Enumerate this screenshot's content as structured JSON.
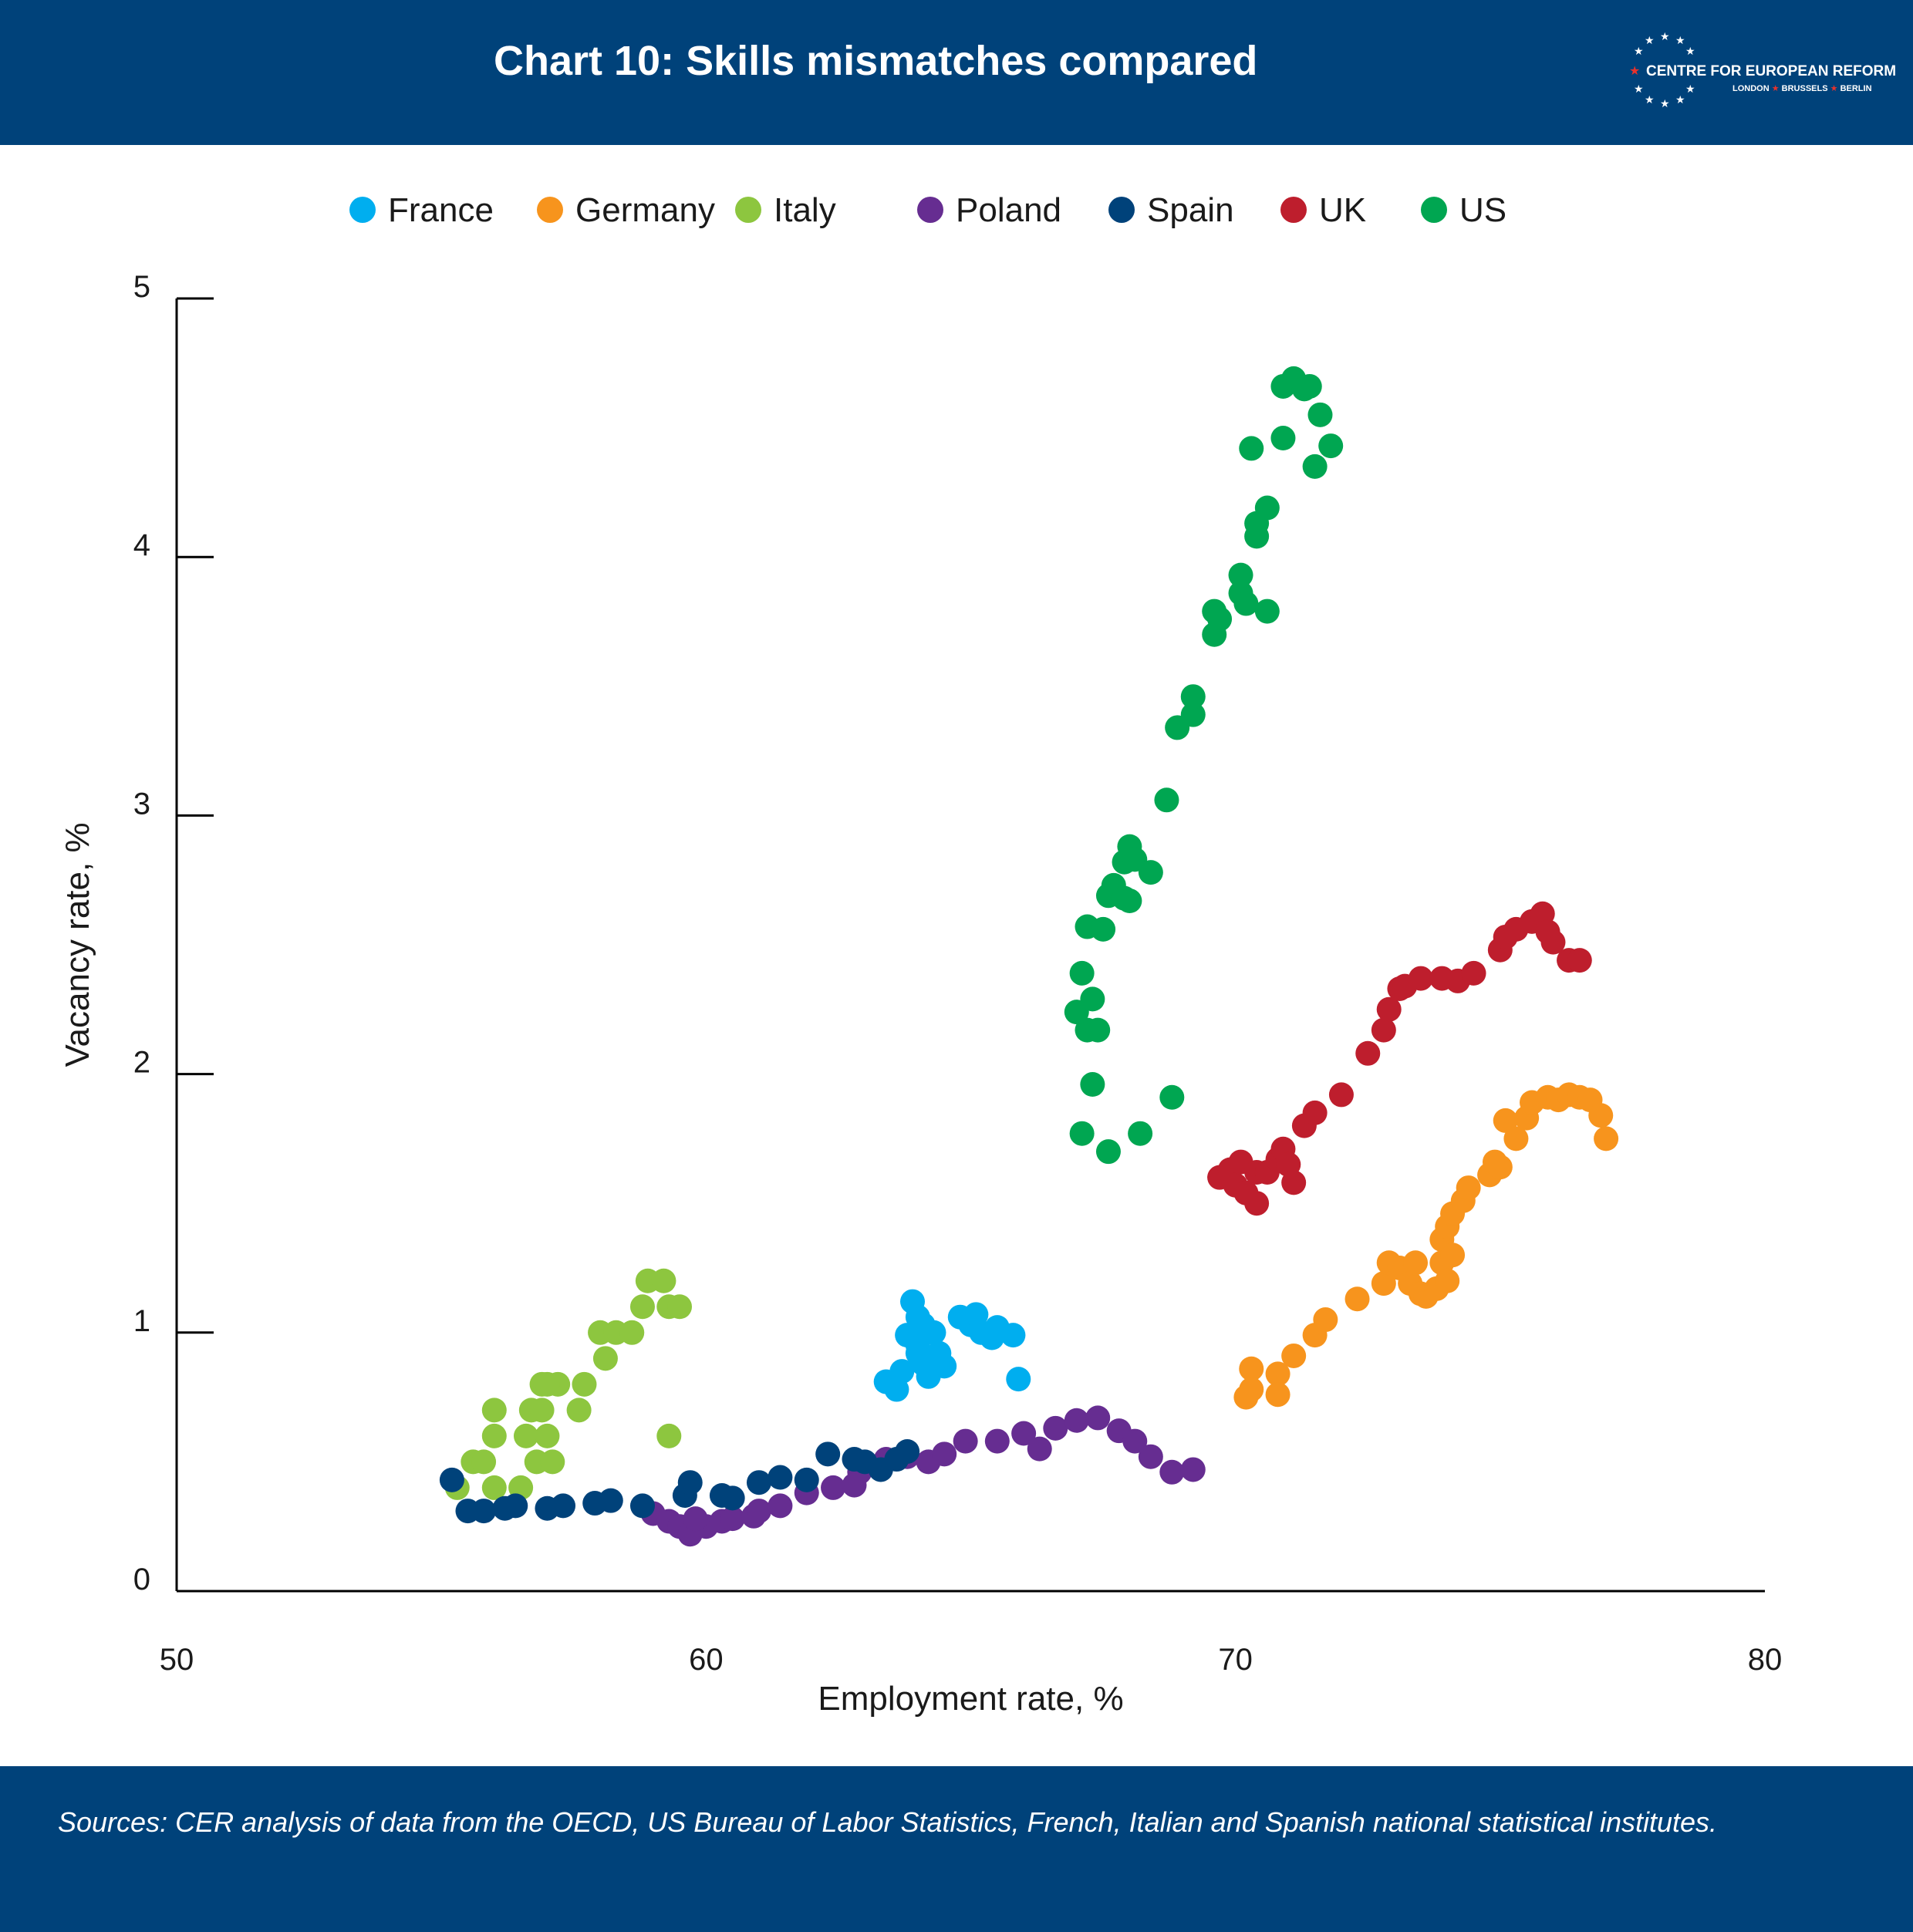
{
  "header": {
    "title": "Chart 10: Skills mismatches compared"
  },
  "logo": {
    "name": "CENTRE FOR EUROPEAN REFORM",
    "cities": [
      "LONDON",
      "BRUSSELS",
      "BERLIN"
    ]
  },
  "footer": {
    "source": "Sources: CER analysis of data from the OECD, US Bureau of Labor Statistics, French, Italian and Spanish national statistical institutes."
  },
  "chart_data": {
    "type": "scatter",
    "title": "",
    "xlabel": "Employment rate, %",
    "ylabel": "Vacancy rate, %",
    "xlim": [
      50,
      80
    ],
    "ylim": [
      0,
      5
    ],
    "xticks": [
      50,
      60,
      70,
      80
    ],
    "yticks": [
      0,
      1,
      2,
      3,
      4,
      5
    ],
    "grid": false,
    "legend": "top",
    "series": [
      {
        "name": "France",
        "color": "#00aeef",
        "points": [
          [
            63.4,
            0.81
          ],
          [
            63.6,
            0.78
          ],
          [
            63.7,
            0.85
          ],
          [
            63.8,
            0.99
          ],
          [
            63.9,
            1.12
          ],
          [
            64.0,
            1.06
          ],
          [
            64.0,
            0.92
          ],
          [
            64.1,
            0.88
          ],
          [
            64.1,
            1.03
          ],
          [
            64.2,
            0.83
          ],
          [
            64.3,
            1.0
          ],
          [
            64.4,
            0.92
          ],
          [
            64.5,
            0.87
          ],
          [
            64.8,
            1.06
          ],
          [
            65.0,
            1.03
          ],
          [
            65.1,
            1.07
          ],
          [
            65.2,
            1.0
          ],
          [
            65.4,
            0.98
          ],
          [
            65.5,
            1.02
          ],
          [
            65.8,
            0.99
          ],
          [
            65.9,
            0.82
          ],
          [
            64.0,
            0.95
          ]
        ]
      },
      {
        "name": "Germany",
        "color": "#f7941d",
        "points": [
          [
            70.2,
            0.75
          ],
          [
            70.3,
            0.86
          ],
          [
            70.3,
            0.78
          ],
          [
            70.8,
            0.84
          ],
          [
            70.8,
            0.76
          ],
          [
            71.1,
            0.91
          ],
          [
            71.5,
            0.99
          ],
          [
            71.7,
            1.05
          ],
          [
            72.3,
            1.13
          ],
          [
            72.8,
            1.19
          ],
          [
            72.9,
            1.27
          ],
          [
            73.1,
            1.25
          ],
          [
            73.3,
            1.19
          ],
          [
            73.4,
            1.27
          ],
          [
            73.5,
            1.15
          ],
          [
            73.6,
            1.14
          ],
          [
            73.8,
            1.17
          ],
          [
            73.9,
            1.27
          ],
          [
            73.9,
            1.36
          ],
          [
            74.0,
            1.2
          ],
          [
            74.1,
            1.3
          ],
          [
            74.0,
            1.41
          ],
          [
            74.1,
            1.46
          ],
          [
            74.3,
            1.51
          ],
          [
            74.4,
            1.56
          ],
          [
            74.8,
            1.61
          ],
          [
            74.9,
            1.66
          ],
          [
            75.1,
            1.82
          ],
          [
            75.3,
            1.75
          ],
          [
            75.5,
            1.83
          ],
          [
            75.6,
            1.89
          ],
          [
            75.9,
            1.91
          ],
          [
            76.1,
            1.9
          ],
          [
            76.3,
            1.92
          ],
          [
            76.5,
            1.91
          ],
          [
            76.7,
            1.9
          ],
          [
            76.9,
            1.84
          ],
          [
            77.0,
            1.75
          ],
          [
            75.0,
            1.64
          ]
        ]
      },
      {
        "name": "Italy",
        "color": "#8dc63f",
        "points": [
          [
            55.3,
            0.4
          ],
          [
            55.6,
            0.5
          ],
          [
            55.8,
            0.5
          ],
          [
            56.0,
            0.6
          ],
          [
            56.0,
            0.7
          ],
          [
            56.0,
            0.4
          ],
          [
            56.5,
            0.4
          ],
          [
            56.6,
            0.6
          ],
          [
            56.7,
            0.7
          ],
          [
            56.8,
            0.5
          ],
          [
            56.9,
            0.7
          ],
          [
            56.9,
            0.8
          ],
          [
            57.0,
            0.6
          ],
          [
            57.2,
            0.8
          ],
          [
            57.6,
            0.7
          ],
          [
            57.7,
            0.8
          ],
          [
            58.0,
            1.0
          ],
          [
            58.1,
            0.9
          ],
          [
            58.3,
            1.0
          ],
          [
            58.6,
            1.0
          ],
          [
            58.8,
            1.1
          ],
          [
            58.9,
            1.2
          ],
          [
            59.2,
            1.2
          ],
          [
            59.3,
            1.1
          ],
          [
            59.5,
            1.1
          ],
          [
            59.3,
            0.6
          ],
          [
            57.1,
            0.5
          ],
          [
            57.0,
            0.8
          ]
        ]
      },
      {
        "name": "Poland",
        "color": "#662d91",
        "points": [
          [
            59.0,
            0.3
          ],
          [
            59.3,
            0.27
          ],
          [
            59.5,
            0.25
          ],
          [
            59.7,
            0.22
          ],
          [
            60.0,
            0.25
          ],
          [
            60.3,
            0.27
          ],
          [
            60.5,
            0.28
          ],
          [
            60.9,
            0.29
          ],
          [
            61.0,
            0.31
          ],
          [
            61.4,
            0.33
          ],
          [
            61.9,
            0.38
          ],
          [
            62.4,
            0.4
          ],
          [
            62.9,
            0.46
          ],
          [
            62.8,
            0.41
          ],
          [
            63.4,
            0.51
          ],
          [
            63.8,
            0.52
          ],
          [
            64.2,
            0.5
          ],
          [
            64.5,
            0.53
          ],
          [
            64.9,
            0.58
          ],
          [
            65.5,
            0.58
          ],
          [
            66.0,
            0.61
          ],
          [
            66.3,
            0.55
          ],
          [
            66.6,
            0.63
          ],
          [
            67.0,
            0.66
          ],
          [
            67.4,
            0.67
          ],
          [
            67.8,
            0.62
          ],
          [
            68.1,
            0.58
          ],
          [
            68.4,
            0.52
          ],
          [
            68.8,
            0.46
          ],
          [
            69.2,
            0.47
          ],
          [
            59.8,
            0.28
          ]
        ]
      },
      {
        "name": "Spain",
        "color": "#00427a",
        "points": [
          [
            55.2,
            0.43
          ],
          [
            55.5,
            0.31
          ],
          [
            55.8,
            0.31
          ],
          [
            56.2,
            0.32
          ],
          [
            56.4,
            0.33
          ],
          [
            57.0,
            0.32
          ],
          [
            57.3,
            0.33
          ],
          [
            57.9,
            0.34
          ],
          [
            58.2,
            0.35
          ],
          [
            58.8,
            0.33
          ],
          [
            59.6,
            0.37
          ],
          [
            59.7,
            0.42
          ],
          [
            60.3,
            0.37
          ],
          [
            60.5,
            0.36
          ],
          [
            61.0,
            0.42
          ],
          [
            61.4,
            0.44
          ],
          [
            61.9,
            0.43
          ],
          [
            62.3,
            0.53
          ],
          [
            62.8,
            0.51
          ],
          [
            63.0,
            0.5
          ],
          [
            63.3,
            0.47
          ],
          [
            63.6,
            0.51
          ],
          [
            63.8,
            0.54
          ]
        ]
      },
      {
        "name": "UK",
        "color": "#be1e2d",
        "points": [
          [
            69.7,
            1.6
          ],
          [
            69.9,
            1.63
          ],
          [
            70.0,
            1.57
          ],
          [
            70.1,
            1.66
          ],
          [
            70.2,
            1.54
          ],
          [
            70.4,
            1.5
          ],
          [
            70.4,
            1.62
          ],
          [
            70.6,
            1.62
          ],
          [
            70.8,
            1.67
          ],
          [
            70.9,
            1.71
          ],
          [
            71.0,
            1.65
          ],
          [
            71.1,
            1.58
          ],
          [
            71.3,
            1.8
          ],
          [
            71.5,
            1.85
          ],
          [
            72.0,
            1.92
          ],
          [
            72.5,
            2.08
          ],
          [
            72.8,
            2.17
          ],
          [
            72.9,
            2.25
          ],
          [
            73.1,
            2.33
          ],
          [
            73.2,
            2.34
          ],
          [
            73.5,
            2.37
          ],
          [
            73.9,
            2.37
          ],
          [
            74.2,
            2.36
          ],
          [
            74.5,
            2.39
          ],
          [
            75.0,
            2.48
          ],
          [
            75.1,
            2.53
          ],
          [
            75.3,
            2.56
          ],
          [
            75.6,
            2.59
          ],
          [
            75.8,
            2.62
          ],
          [
            75.9,
            2.55
          ],
          [
            76.0,
            2.51
          ],
          [
            76.3,
            2.44
          ],
          [
            76.5,
            2.44
          ]
        ]
      },
      {
        "name": "US",
        "color": "#00a651",
        "points": [
          [
            67.1,
            1.77
          ],
          [
            67.6,
            1.7
          ],
          [
            68.2,
            1.77
          ],
          [
            68.8,
            1.91
          ],
          [
            67.3,
            1.96
          ],
          [
            67.2,
            2.17
          ],
          [
            67.4,
            2.17
          ],
          [
            67.0,
            2.24
          ],
          [
            67.3,
            2.29
          ],
          [
            67.1,
            2.39
          ],
          [
            67.2,
            2.57
          ],
          [
            67.5,
            2.56
          ],
          [
            67.6,
            2.69
          ],
          [
            67.7,
            2.73
          ],
          [
            67.9,
            2.68
          ],
          [
            68.0,
            2.67
          ],
          [
            67.9,
            2.82
          ],
          [
            68.0,
            2.88
          ],
          [
            68.1,
            2.83
          ],
          [
            68.4,
            2.78
          ],
          [
            68.7,
            3.06
          ],
          [
            68.9,
            3.34
          ],
          [
            69.2,
            3.39
          ],
          [
            69.2,
            3.46
          ],
          [
            69.6,
            3.7
          ],
          [
            69.6,
            3.79
          ],
          [
            69.7,
            3.76
          ],
          [
            70.1,
            3.86
          ],
          [
            70.1,
            3.93
          ],
          [
            70.2,
            3.82
          ],
          [
            70.6,
            3.79
          ],
          [
            70.3,
            4.42
          ],
          [
            70.4,
            4.08
          ],
          [
            70.4,
            4.13
          ],
          [
            70.6,
            4.19
          ],
          [
            70.9,
            4.46
          ],
          [
            70.9,
            4.66
          ],
          [
            71.1,
            4.69
          ],
          [
            71.3,
            4.65
          ],
          [
            71.4,
            4.66
          ],
          [
            71.6,
            4.55
          ],
          [
            71.5,
            4.35
          ],
          [
            71.8,
            4.43
          ]
        ]
      }
    ]
  }
}
